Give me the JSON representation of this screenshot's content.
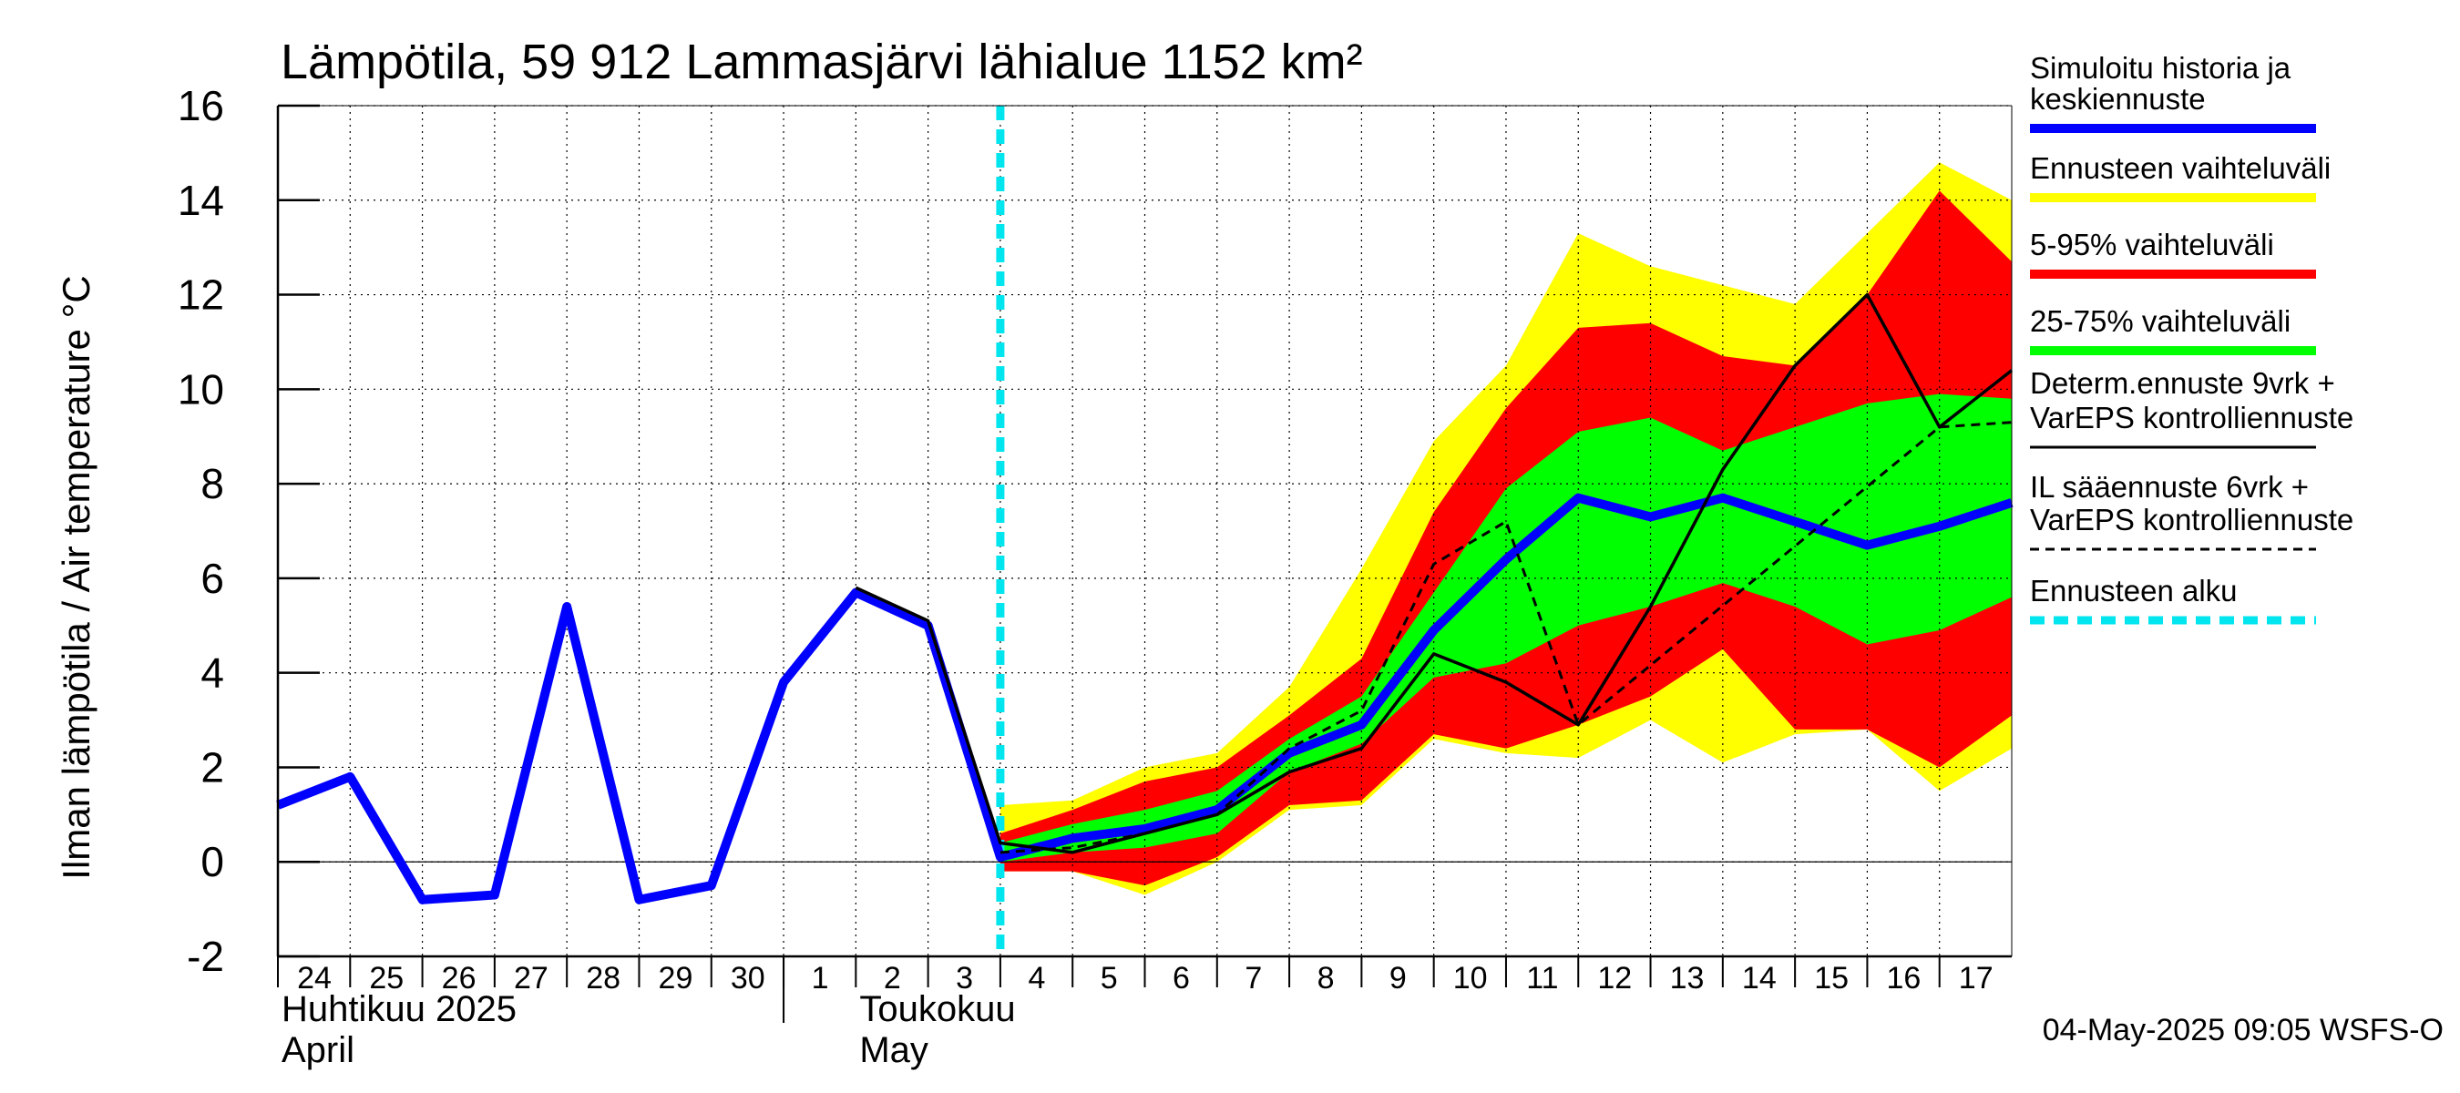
{
  "chart_data": {
    "type": "area",
    "title": "Lämpötila, 59 912 Lammasjärvi lähialue 1152 km²",
    "ylabel": "Ilman lämpötila / Air temperature   °C",
    "ylim": [
      -2,
      16
    ],
    "yticks": [
      -2,
      0,
      2,
      4,
      6,
      8,
      10,
      12,
      14,
      16
    ],
    "xlim": [
      0,
      24
    ],
    "day_ticks": [
      {
        "x": 0,
        "label": "24"
      },
      {
        "x": 1,
        "label": "25"
      },
      {
        "x": 2,
        "label": "26"
      },
      {
        "x": 3,
        "label": "27"
      },
      {
        "x": 4,
        "label": "28"
      },
      {
        "x": 5,
        "label": "29"
      },
      {
        "x": 6,
        "label": "30"
      },
      {
        "x": 7,
        "label": "1"
      },
      {
        "x": 8,
        "label": "2"
      },
      {
        "x": 9,
        "label": "3"
      },
      {
        "x": 10,
        "label": "4"
      },
      {
        "x": 11,
        "label": "5"
      },
      {
        "x": 12,
        "label": "6"
      },
      {
        "x": 13,
        "label": "7"
      },
      {
        "x": 14,
        "label": "8"
      },
      {
        "x": 15,
        "label": "9"
      },
      {
        "x": 16,
        "label": "10"
      },
      {
        "x": 17,
        "label": "11"
      },
      {
        "x": 18,
        "label": "12"
      },
      {
        "x": 19,
        "label": "13"
      },
      {
        "x": 20,
        "label": "14"
      },
      {
        "x": 21,
        "label": "15"
      },
      {
        "x": 22,
        "label": "16"
      },
      {
        "x": 23,
        "label": "17"
      }
    ],
    "month_labels": [
      {
        "x": 0,
        "fi": "Huhtikuu  2025",
        "en": "April"
      },
      {
        "x": 8,
        "fi": "Toukokuu",
        "en": "May"
      }
    ],
    "month_boundary_x": 7,
    "forecast_start_x": 10,
    "series": [
      {
        "name": "Ennusteen vaihteluväli",
        "kind": "band",
        "color": "#ffff00",
        "x": [
          10,
          11,
          12,
          13,
          14,
          15,
          16,
          17,
          18,
          19,
          20,
          21,
          22,
          23,
          24
        ],
        "upper": [
          1.2,
          1.3,
          2.0,
          2.3,
          3.7,
          6.2,
          8.9,
          10.5,
          13.3,
          12.6,
          12.2,
          11.8,
          13.3,
          14.8,
          14.0
        ],
        "lower": [
          -0.2,
          -0.2,
          -0.7,
          0.0,
          1.1,
          1.2,
          2.6,
          2.3,
          2.2,
          3.0,
          2.1,
          2.7,
          2.8,
          1.5,
          2.4
        ]
      },
      {
        "name": "5-95% vaihteluväli",
        "kind": "band",
        "color": "#ff0000",
        "x": [
          10,
          11,
          12,
          13,
          14,
          15,
          16,
          17,
          18,
          19,
          20,
          21,
          22,
          23,
          24
        ],
        "upper": [
          0.6,
          1.1,
          1.7,
          2.0,
          3.1,
          4.3,
          7.4,
          9.6,
          11.3,
          11.4,
          10.7,
          10.5,
          12.0,
          14.2,
          12.7
        ],
        "lower": [
          -0.2,
          -0.2,
          -0.5,
          0.1,
          1.2,
          1.3,
          2.7,
          2.4,
          2.9,
          3.5,
          4.5,
          2.8,
          2.8,
          2.0,
          3.1
        ]
      },
      {
        "name": "25-75% vaihteluväli",
        "kind": "band",
        "color": "#00ff00",
        "x": [
          10,
          11,
          12,
          13,
          14,
          15,
          16,
          17,
          18,
          19,
          20,
          21,
          22,
          23,
          24
        ],
        "upper": [
          0.4,
          0.8,
          1.1,
          1.5,
          2.6,
          3.5,
          5.7,
          7.9,
          9.1,
          9.4,
          8.7,
          9.2,
          9.7,
          9.9,
          9.8
        ],
        "lower": [
          0.0,
          0.2,
          0.3,
          0.6,
          1.9,
          2.5,
          3.9,
          4.2,
          5.0,
          5.4,
          5.9,
          5.4,
          4.6,
          4.9,
          5.6
        ]
      },
      {
        "name": "Simuloitu historia ja keskiennuste",
        "kind": "line",
        "color": "#0000ff",
        "x": [
          0,
          1,
          2,
          3,
          4,
          5,
          6,
          7,
          8,
          9,
          10,
          11,
          12,
          13,
          14,
          15,
          16,
          17,
          18,
          19,
          20,
          21,
          22,
          23,
          24
        ],
        "y": [
          1.2,
          1.8,
          -0.8,
          -0.7,
          5.4,
          -0.8,
          -0.5,
          3.8,
          5.7,
          5.0,
          0.1,
          0.5,
          0.7,
          1.1,
          2.3,
          2.9,
          4.9,
          6.4,
          7.7,
          7.3,
          7.7,
          7.2,
          6.7,
          7.1,
          7.6
        ]
      },
      {
        "name": "Determ.ennuste 9vrk + VarEPS kontrolliennuste",
        "kind": "line",
        "color": "#000000",
        "x": [
          8,
          9,
          10,
          11,
          12,
          13,
          14,
          15,
          16,
          17,
          18,
          19,
          20,
          21,
          22,
          23,
          24
        ],
        "y": [
          5.8,
          5.1,
          0.4,
          0.2,
          0.6,
          1.0,
          1.9,
          2.4,
          4.4,
          3.8,
          2.9,
          5.4,
          8.3,
          10.5,
          12.0,
          9.2,
          10.4
        ]
      },
      {
        "name": "IL sääennuste 6vrk + VarEPS kontrolliennuste",
        "kind": "dashed",
        "color": "#000000",
        "x": [
          10,
          11,
          12,
          13,
          14,
          15,
          16,
          17,
          18,
          23,
          24
        ],
        "y": [
          0.2,
          0.3,
          0.6,
          1.0,
          2.4,
          3.2,
          6.3,
          7.2,
          2.9,
          9.2,
          9.3
        ]
      }
    ],
    "legend": {
      "placement": "right",
      "items": [
        {
          "label1": "Simuloitu historia ja",
          "label2": "keskiennuste",
          "color": "#0000ff",
          "style": "thick"
        },
        {
          "label1": "Ennusteen vaihteluväli",
          "label2": "",
          "color": "#ffff00",
          "style": "thick"
        },
        {
          "label1": "5-95% vaihteluväli",
          "label2": "",
          "color": "#ff0000",
          "style": "thick"
        },
        {
          "label1": "25-75% vaihteluväli",
          "label2": "",
          "color": "#00ff00",
          "style": "thick"
        },
        {
          "label1": "Determ.ennuste 9vrk +",
          "label2": "VarEPS kontrolliennuste",
          "color": "#000000",
          "style": "thin"
        },
        {
          "label1": "IL sääennuste 6vrk  +",
          "label2": "  VarEPS kontrolliennuste",
          "color": "#000000",
          "style": "dashed"
        },
        {
          "label1": "Ennusteen alku",
          "label2": "",
          "color": "#00e5ee",
          "style": "dashed-thick"
        }
      ]
    },
    "footer": "04-May-2025 09:05 WSFS-O",
    "grid": true
  }
}
